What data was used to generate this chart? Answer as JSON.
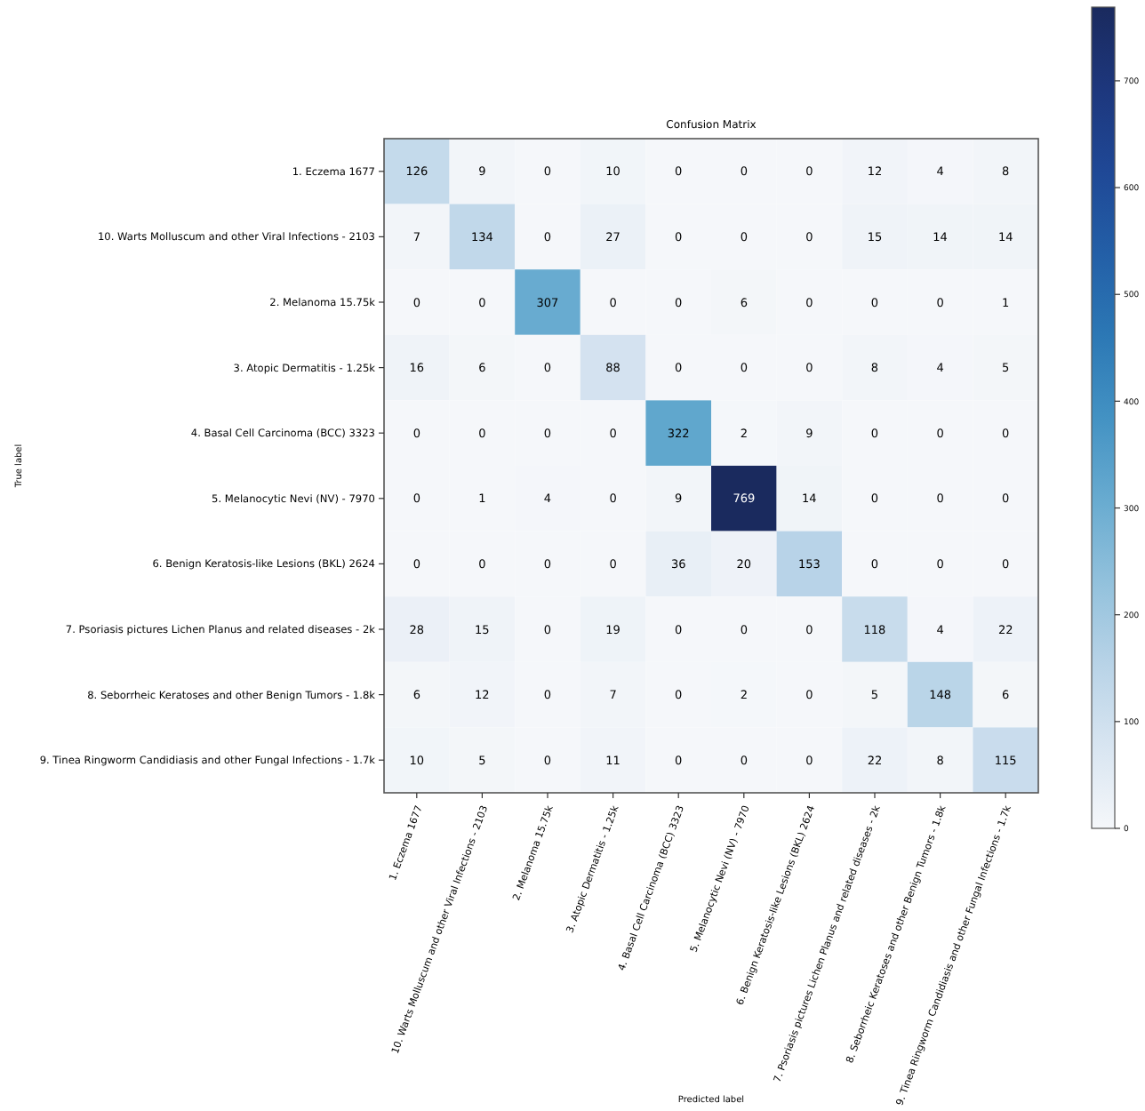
{
  "chart_data": {
    "type": "heatmap",
    "title": "Confusion Matrix",
    "xlabel": "Predicted label",
    "ylabel": "True label",
    "categories": [
      "1. Eczema 1677",
      "10. Warts Molluscum and other Viral Infections - 2103",
      "2. Melanoma 15.75k",
      "3. Atopic Dermatitis - 1.25k",
      "4. Basal Cell Carcinoma (BCC) 3323",
      "5. Melanocytic Nevi (NV) - 7970",
      "6. Benign Keratosis-like Lesions (BKL) 2624",
      "7. Psoriasis pictures Lichen Planus and related diseases - 2k",
      "8. Seborrheic Keratoses and other Benign Tumors - 1.8k",
      "9. Tinea Ringworm Candidiasis and other Fungal Infections - 1.7k"
    ],
    "y_categories": [
      "1. Eczema 1677",
      "10. Warts Molluscum and other Viral Infections - 2103",
      "2. Melanoma 15.75k",
      "3. Atopic Dermatitis - 1.25k",
      "4. Basal Cell Carcinoma (BCC) 3323",
      "5. Melanocytic Nevi (NV) - 7970",
      "6. Benign Keratosis-like Lesions (BKL) 2624",
      "7. Psoriasis pictures Lichen Planus and related diseases - 2k",
      "8. Seborrheic Keratoses and other Benign Tumors - 1.8k",
      "9. Tinea Ringworm Candidiasis and other Fungal Infections - 1.7k"
    ],
    "cells": [
      [
        126,
        9,
        0,
        10,
        0,
        0,
        0,
        12,
        4,
        8
      ],
      [
        7,
        134,
        0,
        27,
        0,
        0,
        0,
        15,
        14,
        14
      ],
      [
        0,
        0,
        307,
        0,
        0,
        6,
        0,
        0,
        0,
        1
      ],
      [
        16,
        6,
        0,
        88,
        0,
        0,
        0,
        8,
        4,
        5
      ],
      [
        0,
        0,
        0,
        0,
        322,
        2,
        9,
        0,
        0,
        0
      ],
      [
        0,
        1,
        4,
        0,
        9,
        769,
        14,
        0,
        0,
        0
      ],
      [
        0,
        0,
        0,
        0,
        36,
        20,
        153,
        0,
        0,
        0
      ],
      [
        28,
        15,
        0,
        19,
        0,
        0,
        0,
        118,
        4,
        22
      ],
      [
        6,
        12,
        0,
        7,
        0,
        2,
        0,
        5,
        148,
        6
      ],
      [
        10,
        5,
        0,
        11,
        0,
        0,
        0,
        22,
        8,
        115
      ]
    ],
    "data_labels": true,
    "clim": [
      0,
      769
    ],
    "cticks": [
      0,
      100,
      200,
      300,
      400,
      500,
      600,
      700
    ]
  }
}
